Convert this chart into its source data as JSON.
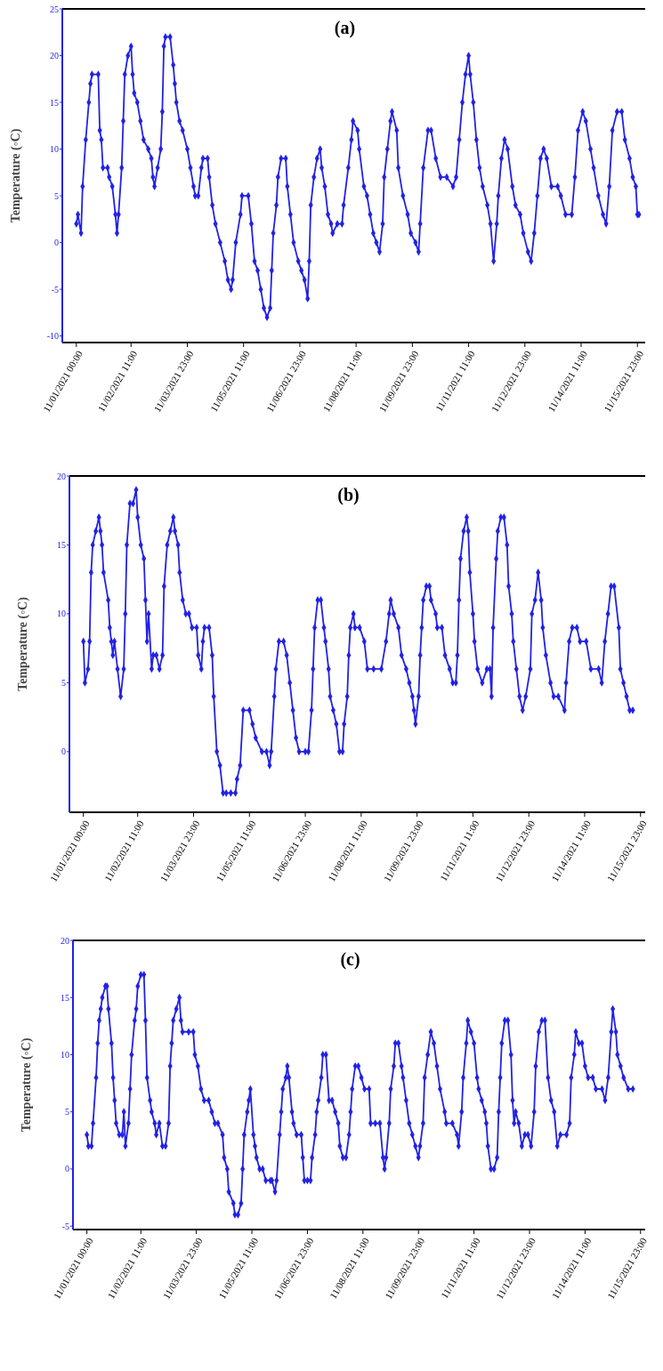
{
  "chart_data": [
    {
      "type": "line",
      "title": "(a)",
      "ylabel": "Temperature (◦C)",
      "marker": "diamond",
      "xlim": [
        "2021-10-31T15:00",
        "2021-11-16T04:00"
      ],
      "ylim": [
        -10.7,
        25
      ],
      "yticks": [
        -10,
        -5,
        0,
        5,
        10,
        15,
        20,
        25
      ],
      "xticks": [
        {
          "value": "2021-11-01T00:00",
          "label": "11/01/2021 00:00"
        },
        {
          "value": "2021-11-02T11:00",
          "label": "11/02/2021 11:00"
        },
        {
          "value": "2021-11-03T23:00",
          "label": "11/03/2021 23:00"
        },
        {
          "value": "2021-11-05T11:00",
          "label": "11/05/2021 11:00"
        },
        {
          "value": "2021-11-06T23:00",
          "label": "11/06/2021 23:00"
        },
        {
          "value": "2021-11-08T11:00",
          "label": "11/08/2021 11:00"
        },
        {
          "value": "2021-11-09T23:00",
          "label": "11/09/2021 23:00"
        },
        {
          "value": "2021-11-11T11:00",
          "label": "11/11/2021 11:00"
        },
        {
          "value": "2021-11-12T23:00",
          "label": "11/12/2021 23:00"
        },
        {
          "value": "2021-11-14T11:00",
          "label": "11/14/2021 11:00"
        },
        {
          "value": "2021-11-15T23:00",
          "label": "11/15/2021 23:00"
        }
      ],
      "x": [
        "2021-11-01T00:00",
        "2021-11-01T01:00",
        "2021-11-01T03:00",
        "2021-11-01T04:00",
        "2021-11-01T06:00",
        "2021-11-01T08:00",
        "2021-11-01T09:00",
        "2021-11-01T10:00",
        "2021-11-01T14:00",
        "2021-11-01T15:00",
        "2021-11-01T16:00",
        "2021-11-01T17:00",
        "2021-11-01T20:00",
        "2021-11-01T21:00",
        "2021-11-01T23:00",
        "2021-11-02T01:00",
        "2021-11-02T02:00",
        "2021-11-02T03:00",
        "2021-11-02T05:00",
        "2021-11-02T06:00",
        "2021-11-02T07:00",
        "2021-11-02T09:00",
        "2021-11-02T11:00",
        "2021-11-02T12:00",
        "2021-11-02T13:00",
        "2021-11-02T15:00",
        "2021-11-02T17:00",
        "2021-11-02T19:00",
        "2021-11-02T22:00",
        "2021-11-03T00:00",
        "2021-11-03T01:00",
        "2021-11-03T02:00",
        "2021-11-03T04:00",
        "2021-11-03T06:00",
        "2021-11-03T07:00",
        "2021-11-03T08:00",
        "2021-11-03T09:00",
        "2021-11-03T12:00",
        "2021-11-03T14:00",
        "2021-11-03T15:00",
        "2021-11-03T16:00",
        "2021-11-03T18:00",
        "2021-11-03T20:00",
        "2021-11-03T23:00",
        "2021-11-04T01:00",
        "2021-11-04T03:00",
        "2021-11-04T04:00",
        "2021-11-04T06:00",
        "2021-11-04T08:00",
        "2021-11-04T09:00",
        "2021-11-04T12:00",
        "2021-11-04T13:00",
        "2021-11-04T15:00",
        "2021-11-04T17:00",
        "2021-11-04T20:00",
        "2021-11-04T23:00",
        "2021-11-05T01:00",
        "2021-11-05T03:00",
        "2021-11-05T04:00",
        "2021-11-05T06:00",
        "2021-11-05T09:00",
        "2021-11-05T10:00",
        "2021-11-05T14:00",
        "2021-11-05T16:00",
        "2021-11-05T18:00",
        "2021-11-05T20:00",
        "2021-11-05T22:00",
        "2021-11-06T00:00",
        "2021-11-06T02:00",
        "2021-11-06T04:00",
        "2021-11-06T05:00",
        "2021-11-06T06:00",
        "2021-11-06T08:00",
        "2021-11-06T09:00",
        "2021-11-06T11:00",
        "2021-11-06T14:00",
        "2021-11-06T15:00",
        "2021-11-06T17:00",
        "2021-11-06T19:00",
        "2021-11-06T22:00",
        "2021-11-07T00:00",
        "2021-11-07T02:00",
        "2021-11-07T04:00",
        "2021-11-07T05:00",
        "2021-11-07T06:00",
        "2021-11-07T08:00",
        "2021-11-07T10:00",
        "2021-11-07T12:00",
        "2021-11-07T13:00",
        "2021-11-07T15:00",
        "2021-11-07T17:00",
        "2021-11-07T19:00",
        "2021-11-07T20:00",
        "2021-11-07T23:00",
        "2021-11-08T02:00",
        "2021-11-08T03:00",
        "2021-11-08T06:00",
        "2021-11-08T08:00",
        "2021-11-08T09:00",
        "2021-11-08T12:00",
        "2021-11-08T13:00",
        "2021-11-08T16:00",
        "2021-11-08T18:00",
        "2021-11-08T20:00",
        "2021-11-08T22:00",
        "2021-11-09T00:00",
        "2021-11-09T02:00",
        "2021-11-09T04:00",
        "2021-11-09T05:00",
        "2021-11-09T07:00",
        "2021-11-09T09:00",
        "2021-11-09T10:00",
        "2021-11-09T13:00",
        "2021-11-09T14:00",
        "2021-11-09T17:00",
        "2021-11-09T20:00",
        "2021-11-09T22:00",
        "2021-11-10T01:00",
        "2021-11-10T03:00",
        "2021-11-10T04:00",
        "2021-11-10T06:00",
        "2021-11-10T09:00",
        "2021-11-10T11:00",
        "2021-11-10T14:00",
        "2021-11-10T17:00",
        "2021-11-10T21:00",
        "2021-11-11T01:00",
        "2021-11-11T03:00",
        "2021-11-11T05:00",
        "2021-11-11T07:00",
        "2021-11-11T09:00",
        "2021-11-11T11:00",
        "2021-11-11T12:00",
        "2021-11-11T14:00",
        "2021-11-11T16:00",
        "2021-11-11T18:00",
        "2021-11-11T20:00",
        "2021-11-11T23:00",
        "2021-11-12T01:00",
        "2021-11-12T03:00",
        "2021-11-12T05:00",
        "2021-11-12T06:00",
        "2021-11-12T08:00",
        "2021-11-12T10:00",
        "2021-11-12T12:00",
        "2021-11-12T15:00",
        "2021-11-12T17:00",
        "2021-11-12T20:00",
        "2021-11-12T22:00",
        "2021-11-13T01:00",
        "2021-11-13T03:00",
        "2021-11-13T05:00",
        "2021-11-13T07:00",
        "2021-11-13T09:00",
        "2021-11-13T11:00",
        "2021-11-13T13:00",
        "2021-11-13T16:00",
        "2021-11-13T20:00",
        "2021-11-13T22:00",
        "2021-11-14T01:00",
        "2021-11-14T05:00",
        "2021-11-14T07:00",
        "2021-11-14T09:00",
        "2021-11-14T12:00",
        "2021-11-14T14:00",
        "2021-11-14T17:00",
        "2021-11-14T19:00",
        "2021-11-14T22:00",
        "2021-11-15T01:00",
        "2021-11-15T03:00",
        "2021-11-15T05:00",
        "2021-11-15T07:00",
        "2021-11-15T10:00",
        "2021-11-15T13:00",
        "2021-11-15T15:00",
        "2021-11-15T18:00",
        "2021-11-15T20:00",
        "2021-11-15T22:00",
        "2021-11-15T23:00",
        "2021-11-16T00:00"
      ],
      "series": [
        {
          "color": "#2222e6",
          "values": [
            2,
            3,
            1,
            6,
            11,
            15,
            17,
            18,
            18,
            12,
            11,
            8,
            8,
            7,
            6,
            3,
            1,
            3,
            8,
            13,
            18,
            20,
            21,
            18,
            16,
            15,
            13,
            11,
            10,
            9,
            7,
            6,
            8,
            10,
            14,
            21,
            22,
            22,
            19,
            17,
            15,
            13,
            12,
            10,
            8,
            6,
            5,
            5,
            8,
            9,
            9,
            7,
            4,
            2,
            0,
            -2,
            -4,
            -5,
            -4,
            0,
            3,
            5,
            5,
            2,
            -2,
            -3,
            -5,
            -7,
            -8,
            -7,
            -3,
            1,
            4,
            7,
            9,
            9,
            6,
            3,
            0,
            -2,
            -3,
            -4,
            -6,
            -2,
            4,
            7,
            9,
            10,
            8,
            6,
            3,
            2,
            1,
            2,
            2,
            4,
            8,
            11,
            13,
            12,
            10,
            6,
            5,
            3,
            1,
            0,
            -1,
            2,
            7,
            10,
            13,
            14,
            12,
            8,
            5,
            3,
            1,
            0,
            -1,
            2,
            8,
            12,
            12,
            9,
            7,
            7,
            6,
            7,
            11,
            15,
            18,
            20,
            18,
            15,
            11,
            8,
            6,
            4,
            2,
            -2,
            2,
            5,
            9,
            11,
            10,
            6,
            4,
            3,
            1,
            -1,
            -2,
            1,
            5,
            9,
            10,
            9,
            6,
            6,
            5,
            3,
            3,
            7,
            12,
            14,
            13,
            10,
            8,
            5,
            3,
            2,
            6,
            12,
            14,
            14,
            11,
            9,
            7,
            6,
            3,
            3
          ]
        }
      ]
    },
    {
      "type": "line",
      "title": "(b)",
      "ylabel": "Temperature (◦C)",
      "marker": "diamond",
      "xlim": [
        "2021-10-31T15:00",
        "2021-11-16T02:00"
      ],
      "ylim": [
        -4.4,
        20
      ],
      "yticks": [
        0,
        5,
        10,
        15,
        20
      ],
      "xticks": [
        {
          "value": "2021-11-01T00:00",
          "label": "11/01/2021 00:00"
        },
        {
          "value": "2021-11-02T11:00",
          "label": "11/02/2021 11:00"
        },
        {
          "value": "2021-11-03T23:00",
          "label": "11/03/2021 23:00"
        },
        {
          "value": "2021-11-05T11:00",
          "label": "11/05/2021 11:00"
        },
        {
          "value": "2021-11-06T23:00",
          "label": "11/06/2021 23:00"
        },
        {
          "value": "2021-11-08T11:00",
          "label": "11/08/2021 11:00"
        },
        {
          "value": "2021-11-09T23:00",
          "label": "11/09/2021 23:00"
        },
        {
          "value": "2021-11-11T11:00",
          "label": "11/11/2021 11:00"
        },
        {
          "value": "2021-11-12T23:00",
          "label": "11/12/2021 23:00"
        },
        {
          "value": "2021-11-14T11:00",
          "label": "11/14/2021 11:00"
        },
        {
          "value": "2021-11-15T23:00",
          "label": "11/15/2021 23:00"
        }
      ],
      "x": [
        "2021-11-01T00:00",
        "2021-11-01T01:00",
        "2021-11-01T03:00",
        "2021-11-01T04:00",
        "2021-11-01T05:00",
        "2021-11-01T06:00",
        "2021-11-01T08:00",
        "2021-11-01T10:00",
        "2021-11-01T11:00",
        "2021-11-01T12:00",
        "2021-11-01T13:00",
        "2021-11-01T16:00",
        "2021-11-01T17:00",
        "2021-11-01T18:00",
        "2021-11-01T19:00",
        "2021-11-01T20:00",
        "2021-11-01T22:00",
        "2021-11-02T00:00",
        "2021-11-02T02:00",
        "2021-11-02T03:00",
        "2021-11-02T04:00",
        "2021-11-02T06:00",
        "2021-11-02T08:00",
        "2021-11-02T10:00",
        "2021-11-02T11:00",
        "2021-11-02T13:00",
        "2021-11-02T15:00",
        "2021-11-02T16:00",
        "2021-11-02T17:00",
        "2021-11-02T18:00",
        "2021-11-02T20:00",
        "2021-11-02T21:00",
        "2021-11-02T23:00",
        "2021-11-03T01:00",
        "2021-11-03T03:00",
        "2021-11-03T04:00",
        "2021-11-03T06:00",
        "2021-11-03T08:00",
        "2021-11-03T10:00",
        "2021-11-03T11:00",
        "2021-11-03T13:00",
        "2021-11-03T14:00",
        "2021-11-03T16:00",
        "2021-11-03T18:00",
        "2021-11-03T20:00",
        "2021-11-03T22:00",
        "2021-11-04T01:00",
        "2021-11-04T02:00",
        "2021-11-04T04:00",
        "2021-11-04T05:00",
        "2021-11-04T06:00",
        "2021-11-04T09:00",
        "2021-11-04T11:00",
        "2021-11-04T12:00",
        "2021-11-04T14:00",
        "2021-11-04T16:00",
        "2021-11-04T18:00",
        "2021-11-04T20:00",
        "2021-11-04T23:00",
        "2021-11-05T02:00",
        "2021-11-05T03:00",
        "2021-11-05T05:00",
        "2021-11-05T07:00",
        "2021-11-05T11:00",
        "2021-11-05T13:00",
        "2021-11-05T15:00",
        "2021-11-05T19:00",
        "2021-11-05T22:00",
        "2021-11-06T00:00",
        "2021-11-06T01:00",
        "2021-11-06T03:00",
        "2021-11-06T04:00",
        "2021-11-06T06:00",
        "2021-11-06T09:00",
        "2021-11-06T11:00",
        "2021-11-06T13:00",
        "2021-11-06T15:00",
        "2021-11-06T17:00",
        "2021-11-06T19:00",
        "2021-11-06T23:00",
        "2021-11-07T01:00",
        "2021-11-07T03:00",
        "2021-11-07T04:00",
        "2021-11-07T05:00",
        "2021-11-07T07:00",
        "2021-11-07T09:00",
        "2021-11-07T11:00",
        "2021-11-07T12:00",
        "2021-11-07T14:00",
        "2021-11-07T15:00",
        "2021-11-07T17:00",
        "2021-11-07T19:00",
        "2021-11-07T21:00",
        "2021-11-07T23:00",
        "2021-11-08T00:00",
        "2021-11-08T02:00",
        "2021-11-08T03:00",
        "2021-11-08T04:00",
        "2021-11-08T06:00",
        "2021-11-08T07:00",
        "2021-11-08T10:00",
        "2021-11-08T13:00",
        "2021-11-08T15:00",
        "2021-11-08T19:00",
        "2021-11-09T00:00",
        "2021-11-09T03:00",
        "2021-11-09T05:00",
        "2021-11-09T06:00",
        "2021-11-09T08:00",
        "2021-11-09T11:00",
        "2021-11-09T13:00",
        "2021-11-09T16:00",
        "2021-11-09T18:00",
        "2021-11-09T20:00",
        "2021-11-09T21:00",
        "2021-11-09T22:00",
        "2021-11-10T00:00",
        "2021-11-10T01:00",
        "2021-11-10T02:00",
        "2021-11-10T03:00",
        "2021-11-10T05:00",
        "2021-11-10T07:00",
        "2021-11-10T08:00",
        "2021-11-10T11:00",
        "2021-11-10T12:00",
        "2021-11-10T15:00",
        "2021-11-10T17:00",
        "2021-11-10T20:00",
        "2021-11-10T22:00",
        "2021-11-11T00:00",
        "2021-11-11T01:00",
        "2021-11-11T02:00",
        "2021-11-11T03:00",
        "2021-11-11T05:00",
        "2021-11-11T07:00",
        "2021-11-11T08:00",
        "2021-11-11T09:00",
        "2021-11-11T11:00",
        "2021-11-11T12:00",
        "2021-11-11T14:00",
        "2021-11-11T17:00",
        "2021-11-11T20:00",
        "2021-11-11T22:00",
        "2021-11-11T23:00",
        "2021-11-12T00:00",
        "2021-11-12T02:00",
        "2021-11-12T03:00",
        "2021-11-12T05:00",
        "2021-11-12T07:00",
        "2021-11-12T09:00",
        "2021-11-12T10:00",
        "2021-11-12T12:00",
        "2021-11-12T13:00",
        "2021-11-12T15:00",
        "2021-11-12T17:00",
        "2021-11-12T19:00",
        "2021-11-12T21:00",
        "2021-11-13T00:00",
        "2021-11-13T01:00",
        "2021-11-13T03:00",
        "2021-11-13T05:00",
        "2021-11-13T07:00",
        "2021-11-13T08:00",
        "2021-11-13T10:00",
        "2021-11-13T13:00",
        "2021-11-13T15:00",
        "2021-11-13T18:00",
        "2021-11-13T22:00",
        "2021-11-13T23:00",
        "2021-11-14T01:00",
        "2021-11-14T03:00",
        "2021-11-14T06:00",
        "2021-11-14T08:00",
        "2021-11-14T12:00",
        "2021-11-14T15:00",
        "2021-11-14T20:00",
        "2021-11-14T22:00",
        "2021-11-15T00:00",
        "2021-11-15T02:00",
        "2021-11-15T04:00",
        "2021-11-15T06:00",
        "2021-11-15T09:00",
        "2021-11-15T10:00",
        "2021-11-15T12:00",
        "2021-11-15T14:00",
        "2021-11-15T16:00",
        "2021-11-15T18:00"
      ],
      "series": [
        {
          "color": "#2222e6",
          "values": [
            8,
            5,
            6,
            8,
            13,
            15,
            16,
            17,
            16,
            15,
            13,
            11,
            9,
            8,
            7,
            8,
            6,
            4,
            6,
            10,
            15,
            18,
            18,
            19,
            17,
            15,
            14,
            11,
            8,
            10,
            6,
            7,
            7,
            6,
            7,
            12,
            15,
            16,
            17,
            16,
            15,
            13,
            11,
            10,
            10,
            9,
            9,
            7,
            6,
            8,
            9,
            9,
            7,
            4,
            0,
            -1,
            -3,
            -3,
            -3,
            -3,
            -2,
            -1,
            3,
            3,
            2,
            1,
            0,
            0,
            -1,
            0,
            4,
            6,
            8,
            8,
            7,
            5,
            3,
            1,
            0,
            0,
            0,
            3,
            6,
            9,
            11,
            11,
            9,
            8,
            6,
            4,
            3,
            2,
            0,
            0,
            2,
            4,
            7,
            9,
            10,
            9,
            9,
            8,
            6,
            6,
            6,
            8,
            10,
            11,
            10,
            9,
            7,
            6,
            5,
            4,
            3,
            2,
            4,
            7,
            9,
            11,
            12,
            12,
            11,
            10,
            9,
            9,
            7,
            6,
            5,
            5,
            7,
            11,
            14,
            16,
            17,
            16,
            13,
            10,
            8,
            6,
            5,
            6,
            6,
            4,
            9,
            14,
            16,
            17,
            17,
            15,
            12,
            10,
            8,
            6,
            4,
            3,
            4,
            6,
            10,
            11,
            13,
            11,
            9,
            7,
            5,
            4,
            4,
            3,
            5,
            8,
            9,
            9,
            8,
            8,
            6,
            6,
            5,
            8,
            10,
            12,
            12,
            9,
            6,
            5,
            4,
            3,
            3
          ]
        }
      ]
    },
    {
      "type": "line",
      "title": "(c)",
      "ylabel": "Temperature (◦C)",
      "marker": "diamond",
      "xlim": [
        "2021-10-31T15:00",
        "2021-11-16T02:00"
      ],
      "ylim": [
        -5.3,
        20
      ],
      "yticks": [
        -5,
        0,
        5,
        10,
        15,
        20
      ],
      "xticks": [
        {
          "value": "2021-11-01T00:00",
          "label": "11/01/2021 00:00"
        },
        {
          "value": "2021-11-02T11:00",
          "label": "11/02/2021 11:00"
        },
        {
          "value": "2021-11-03T23:00",
          "label": "11/03/2021 23:00"
        },
        {
          "value": "2021-11-05T11:00",
          "label": "11/05/2021 11:00"
        },
        {
          "value": "2021-11-06T23:00",
          "label": "11/06/2021 23:00"
        },
        {
          "value": "2021-11-08T11:00",
          "label": "11/08/2021 11:00"
        },
        {
          "value": "2021-11-09T23:00",
          "label": "11/09/2021 23:00"
        },
        {
          "value": "2021-11-11T11:00",
          "label": "11/11/2021 11:00"
        },
        {
          "value": "2021-11-12T23:00",
          "label": "11/12/2021 23:00"
        },
        {
          "value": "2021-11-14T11:00",
          "label": "11/14/2021 11:00"
        },
        {
          "value": "2021-11-15T23:00",
          "label": "11/15/2021 23:00"
        }
      ],
      "x": [
        "2021-11-01T00:00",
        "2021-11-01T01:00",
        "2021-11-01T03:00",
        "2021-11-01T04:00",
        "2021-11-01T06:00",
        "2021-11-01T07:00",
        "2021-11-01T08:00",
        "2021-11-01T09:00",
        "2021-11-01T10:00",
        "2021-11-01T12:00",
        "2021-11-01T13:00",
        "2021-11-01T14:00",
        "2021-11-01T16:00",
        "2021-11-01T17:00",
        "2021-11-01T18:00",
        "2021-11-01T19:00",
        "2021-11-01T21:00",
        "2021-11-01T23:00",
        "2021-11-02T00:00",
        "2021-11-02T01:00",
        "2021-11-02T03:00",
        "2021-11-02T04:00",
        "2021-11-02T05:00",
        "2021-11-02T07:00",
        "2021-11-02T08:00",
        "2021-11-02T09:00",
        "2021-11-02T11:00",
        "2021-11-02T13:00",
        "2021-11-02T14:00",
        "2021-11-02T15:00",
        "2021-11-02T17:00",
        "2021-11-02T18:00",
        "2021-11-02T20:00",
        "2021-11-02T21:00",
        "2021-11-02T23:00",
        "2021-11-03T01:00",
        "2021-11-03T03:00",
        "2021-11-03T05:00",
        "2021-11-03T06:00",
        "2021-11-03T07:00",
        "2021-11-03T08:00",
        "2021-11-03T10:00",
        "2021-11-03T12:00",
        "2021-11-03T13:00",
        "2021-11-03T14:00",
        "2021-11-03T18:00",
        "2021-11-03T21:00",
        "2021-11-03T22:00",
        "2021-11-04T00:00",
        "2021-11-04T02:00",
        "2021-11-04T04:00",
        "2021-11-04T07:00",
        "2021-11-04T09:00",
        "2021-11-04T11:00",
        "2021-11-04T13:00",
        "2021-11-04T16:00",
        "2021-11-04T17:00",
        "2021-11-04T19:00",
        "2021-11-04T20:00",
        "2021-11-04T23:00",
        "2021-11-05T00:00",
        "2021-11-05T02:00",
        "2021-11-05T04:00",
        "2021-11-05T05:00",
        "2021-11-05T06:00",
        "2021-11-05T08:00",
        "2021-11-05T09:00",
        "2021-11-05T10:00",
        "2021-11-05T12:00",
        "2021-11-05T13:00",
        "2021-11-05T14:00",
        "2021-11-05T16:00",
        "2021-11-05T18:00",
        "2021-11-05T20:00",
        "2021-11-05T23:00",
        "2021-11-06T00:00",
        "2021-11-06T02:00",
        "2021-11-06T03:00",
        "2021-11-06T05:00",
        "2021-11-06T06:00",
        "2021-11-06T07:00",
        "2021-11-06T09:00",
        "2021-11-06T10:00",
        "2021-11-06T11:00",
        "2021-11-06T13:00",
        "2021-11-06T14:00",
        "2021-11-06T16:00",
        "2021-11-06T19:00",
        "2021-11-06T20:00",
        "2021-11-06T21:00",
        "2021-11-06T23:00",
        "2021-11-07T01:00",
        "2021-11-07T02:00",
        "2021-11-07T04:00",
        "2021-11-07T05:00",
        "2021-11-07T06:00",
        "2021-11-07T08:00",
        "2021-11-07T09:00",
        "2021-11-07T11:00",
        "2021-11-07T13:00",
        "2021-11-07T15:00",
        "2021-11-07T17:00",
        "2021-11-07T19:00",
        "2021-11-07T20:00",
        "2021-11-07T22:00",
        "2021-11-08T00:00",
        "2021-11-08T02:00",
        "2021-11-08T03:00",
        "2021-11-08T04:00",
        "2021-11-08T06:00",
        "2021-11-08T08:00",
        "2021-11-08T10:00",
        "2021-11-08T12:00",
        "2021-11-08T15:00",
        "2021-11-08T16:00",
        "2021-11-08T19:00",
        "2021-11-08T22:00",
        "2021-11-09T00:00",
        "2021-11-09T01:00",
        "2021-11-09T02:00",
        "2021-11-09T04:00",
        "2021-11-09T05:00",
        "2021-11-09T07:00",
        "2021-11-09T08:00",
        "2021-11-09T10:00",
        "2021-11-09T12:00",
        "2021-11-09T13:00",
        "2021-11-09T15:00",
        "2021-11-09T17:00",
        "2021-11-09T19:00",
        "2021-11-09T21:00",
        "2021-11-09T23:00",
        "2021-11-10T00:00",
        "2021-11-10T02:00",
        "2021-11-10T03:00",
        "2021-11-10T05:00",
        "2021-11-10T07:00",
        "2021-11-10T09:00",
        "2021-11-10T11:00",
        "2021-11-10T13:00",
        "2021-11-10T16:00",
        "2021-11-10T17:00",
        "2021-11-10T21:00",
        "2021-11-11T00:00",
        "2021-11-11T01:00",
        "2021-11-11T03:00",
        "2021-11-11T04:00",
        "2021-11-11T06:00",
        "2021-11-11T07:00",
        "2021-11-11T09:00",
        "2021-11-11T11:00",
        "2021-11-11T13:00",
        "2021-11-11T14:00",
        "2021-11-11T16:00",
        "2021-11-11T18:00",
        "2021-11-11T19:00",
        "2021-11-11T20:00",
        "2021-11-11T22:00",
        "2021-11-12T00:00",
        "2021-11-12T02:00",
        "2021-11-12T03:00",
        "2021-11-12T04:00",
        "2021-11-12T05:00",
        "2021-11-12T07:00",
        "2021-11-12T09:00",
        "2021-11-12T11:00",
        "2021-11-12T12:00",
        "2021-11-12T13:00",
        "2021-11-12T14:00",
        "2021-11-12T16:00",
        "2021-11-12T18:00",
        "2021-11-12T20:00",
        "2021-11-12T22:00",
        "2021-11-13T00:00",
        "2021-11-13T02:00",
        "2021-11-13T03:00",
        "2021-11-13T05:00",
        "2021-11-13T07:00",
        "2021-11-13T09:00",
        "2021-11-13T11:00",
        "2021-11-13T13:00",
        "2021-11-13T15:00",
        "2021-11-13T17:00",
        "2021-11-13T19:00",
        "2021-11-13T23:00",
        "2021-11-14T01:00",
        "2021-11-14T02:00",
        "2021-11-14T04:00",
        "2021-11-14T05:00",
        "2021-11-14T07:00",
        "2021-11-14T09:00",
        "2021-11-14T11:00",
        "2021-11-14T13:00",
        "2021-11-14T16:00",
        "2021-11-14T18:00",
        "2021-11-14T22:00",
        "2021-11-15T00:00",
        "2021-11-15T02:00",
        "2021-11-15T04:00",
        "2021-11-15T05:00",
        "2021-11-15T07:00",
        "2021-11-15T08:00",
        "2021-11-15T10:00",
        "2021-11-15T12:00",
        "2021-11-15T15:00",
        "2021-11-15T18:00"
      ],
      "series": [
        {
          "color": "#2222e6",
          "values": [
            3,
            2,
            2,
            4,
            8,
            11,
            13,
            14,
            15,
            16,
            16,
            14,
            11,
            8,
            6,
            4,
            3,
            3,
            5,
            2,
            4,
            7,
            10,
            13,
            14,
            16,
            17,
            17,
            13,
            8,
            6,
            5,
            4,
            3,
            4,
            2,
            2,
            4,
            9,
            11,
            13,
            14,
            15,
            13,
            12,
            12,
            12,
            10,
            9,
            7,
            6,
            6,
            5,
            4,
            4,
            3,
            1,
            0,
            -2,
            -3,
            -4,
            -4,
            -3,
            0,
            3,
            5,
            6,
            7,
            3,
            2,
            1,
            0,
            0,
            -1,
            -1,
            -1,
            -2,
            -1,
            3,
            5,
            7,
            8,
            9,
            8,
            5,
            4,
            3,
            3,
            1,
            -1,
            -1,
            -1,
            1,
            3,
            5,
            6,
            8,
            10,
            10,
            6,
            6,
            5,
            4,
            2,
            1,
            1,
            3,
            5,
            7,
            9,
            9,
            8,
            7,
            7,
            4,
            4,
            4,
            1,
            0,
            1,
            4,
            7,
            9,
            11,
            11,
            9,
            8,
            6,
            4,
            3,
            2,
            1,
            2,
            4,
            8,
            10,
            12,
            11,
            9,
            7,
            5,
            4,
            4,
            3,
            2,
            5,
            8,
            11,
            13,
            12,
            11,
            8,
            7,
            6,
            5,
            4,
            2,
            0,
            0,
            1,
            5,
            8,
            11,
            13,
            13,
            10,
            6,
            4,
            5,
            4,
            2,
            3,
            3,
            2,
            5,
            9,
            12,
            13,
            13,
            8,
            6,
            5,
            2,
            3,
            3,
            4,
            8,
            10,
            12,
            11,
            11,
            9,
            8,
            8,
            7,
            7,
            6,
            8,
            12,
            14,
            12,
            10,
            9,
            8,
            7,
            7
          ]
        }
      ]
    }
  ]
}
